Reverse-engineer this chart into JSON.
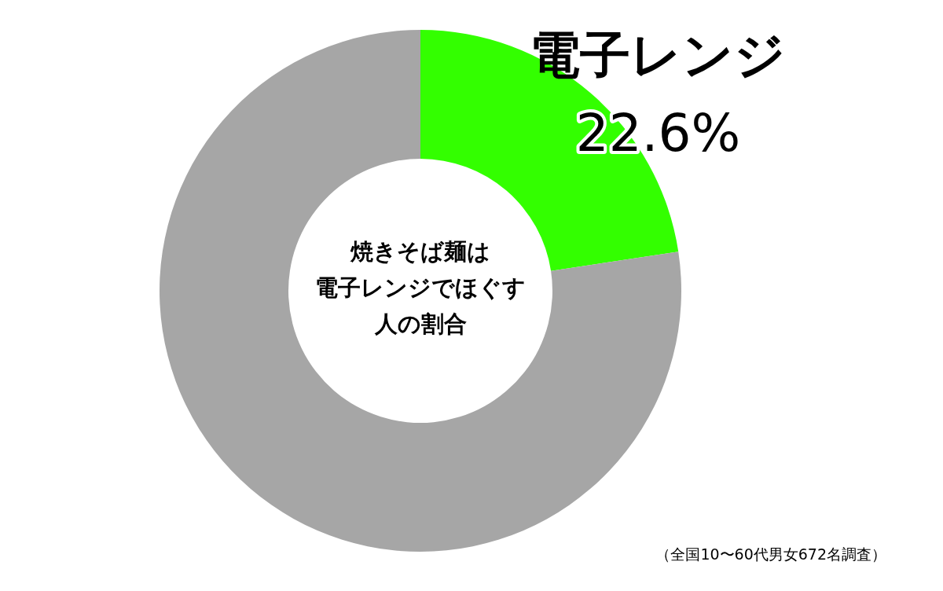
{
  "chart_data": {
    "type": "donut",
    "title": "焼きそば麺は電子レンジでほぐす人の割合",
    "categories": [
      "電子レンジ",
      null
    ],
    "values": [
      22.6,
      77.4
    ],
    "colors": [
      "#33ff00",
      "#a6a6a6"
    ],
    "value_labels": [
      "22.6%",
      null
    ],
    "annotations": [
      "（全国10〜60代男女672名調査）"
    ]
  }
}
